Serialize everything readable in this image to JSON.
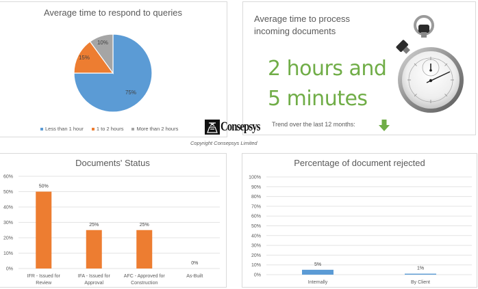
{
  "chart_data": [
    {
      "type": "pie",
      "title": "Average time to respond to queries",
      "categories": [
        "Less than 1 hour",
        "1 to 2 hours",
        "More than 2 hours"
      ],
      "values": [
        75,
        15,
        10
      ],
      "labels": [
        "75%",
        "15%",
        "10%"
      ],
      "colors": [
        "#5b9bd5",
        "#ed7d31",
        "#a5a5a5"
      ],
      "legend_position": "bottom"
    },
    {
      "type": "bar",
      "title": "Documents' Status",
      "categories": [
        "IFR - Issued for Review",
        "IFA - Issued for Approval",
        "AFC - Approved for Construction",
        "As-Built"
      ],
      "category_lines": [
        [
          "IFR - Issued for",
          "Review"
        ],
        [
          "IFA - Issued for",
          "Approval"
        ],
        [
          "AFC - Approved for",
          "Construction"
        ],
        [
          "As-Built"
        ]
      ],
      "values": [
        50,
        25,
        25,
        0
      ],
      "data_labels": [
        "50%",
        "25%",
        "25%",
        "0%"
      ],
      "xlabel": "",
      "ylabel": "",
      "ylim": [
        0,
        60
      ],
      "yticks": [
        "0%",
        "10%",
        "20%",
        "30%",
        "40%",
        "50%",
        "60%"
      ],
      "grid": true,
      "color": "#ed7d31"
    },
    {
      "type": "bar",
      "title": "Percentage of document rejected",
      "categories": [
        "Internally",
        "By Client"
      ],
      "values": [
        5,
        1
      ],
      "data_labels": [
        "5%",
        "1%"
      ],
      "xlabel": "",
      "ylabel": "",
      "ylim": [
        0,
        100
      ],
      "yticks": [
        "0%",
        "10%",
        "20%",
        "30%",
        "40%",
        "50%",
        "60%",
        "70%",
        "80%",
        "90%",
        "100%"
      ],
      "grid": true,
      "color": "#5b9bd5"
    }
  ],
  "pie_panel": {
    "title": "Average time to respond to queries",
    "legend": [
      {
        "label": "Less than 1 hour",
        "color": "#5b9bd5"
      },
      {
        "label": "1 to 2 hours",
        "color": "#ed7d31"
      },
      {
        "label": "More than 2 hours",
        "color": "#a5a5a5"
      }
    ]
  },
  "timer_panel": {
    "title": "Average time to process incoming documents",
    "value_line1": "2 hours and",
    "value_line2": "5 minutes",
    "value_color": "#70ad47",
    "trend_label": "Trend over the last 12 months:",
    "trend_icon": "down-arrow-icon",
    "trend_color": "#70ad47",
    "icon": "stopwatch-icon"
  },
  "status_panel": {
    "title": "Documents' Status"
  },
  "reject_panel": {
    "title": "Percentage of document rejected"
  },
  "branding": {
    "logo_text": "Consepsys",
    "copyright": "Copyright Consepsys Limited"
  }
}
